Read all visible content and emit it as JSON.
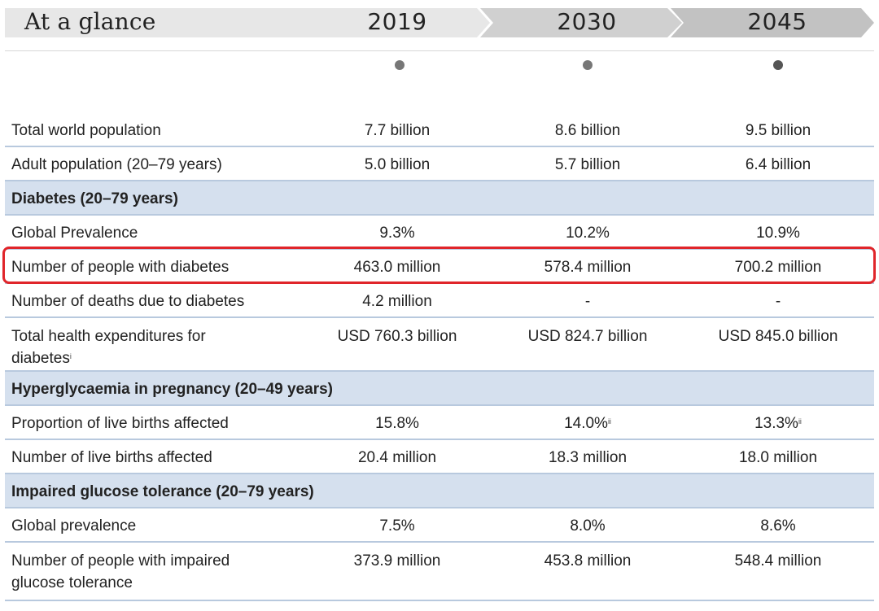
{
  "header": {
    "title": "At a glance",
    "years": [
      "2019",
      "2030",
      "2045"
    ],
    "colors": {
      "band_light": "#e7e7e7",
      "band_mid": "#d0d0d0",
      "band_dark": "#c2c2c2",
      "dot": "#777777"
    }
  },
  "highlight_color": "#e0252a",
  "section_color": "#d5e0ee",
  "rows": [
    {
      "kind": "data",
      "label": "Total world population",
      "v2019": "7.7 billion",
      "v2030": "8.6 billion",
      "v2045": "9.5 billion"
    },
    {
      "kind": "data",
      "label": "Adult population (20–79 years)",
      "v2019": "5.0 billion",
      "v2030": "5.7 billion",
      "v2045": "6.4 billion"
    },
    {
      "kind": "section",
      "label": "Diabetes (20–79 years)"
    },
    {
      "kind": "data",
      "label": "Global Prevalence",
      "v2019": "9.3%",
      "v2030": "10.2%",
      "v2045": "10.9%"
    },
    {
      "kind": "data",
      "label": "Number of people with diabetes",
      "v2019": "463.0 million",
      "v2030": "578.4 million",
      "v2045": "700.2 million",
      "highlighted": true
    },
    {
      "kind": "data",
      "label": "Number of deaths due to diabetes",
      "v2019": "4.2 million",
      "v2030": "-",
      "v2045": "-"
    },
    {
      "kind": "data",
      "label": "Total health expenditures for diabetes",
      "label_sup": "i",
      "v2019": "USD 760.3 billion",
      "v2030": "USD 824.7 billion",
      "v2045": "USD 845.0 billion"
    },
    {
      "kind": "section",
      "label": "Hyperglycaemia in pregnancy (20–49 years)"
    },
    {
      "kind": "data",
      "label": "Proportion of live births affected",
      "v2019": "15.8%",
      "v2030": "14.0%",
      "v2030_sup": "ii",
      "v2045": "13.3%",
      "v2045_sup": "ii"
    },
    {
      "kind": "data",
      "label": "Number of live births affected",
      "v2019": "20.4 million",
      "v2030": "18.3 million",
      "v2045": "18.0 million"
    },
    {
      "kind": "section",
      "label": "Impaired glucose tolerance (20–79 years)"
    },
    {
      "kind": "data",
      "label": "Global prevalence",
      "v2019": "7.5%",
      "v2030": "8.0%",
      "v2045": "8.6%"
    },
    {
      "kind": "data",
      "label": "Number of people with impaired glucose tolerance",
      "v2019": "373.9 million",
      "v2030": "453.8 million",
      "v2045": "548.4 million"
    }
  ]
}
